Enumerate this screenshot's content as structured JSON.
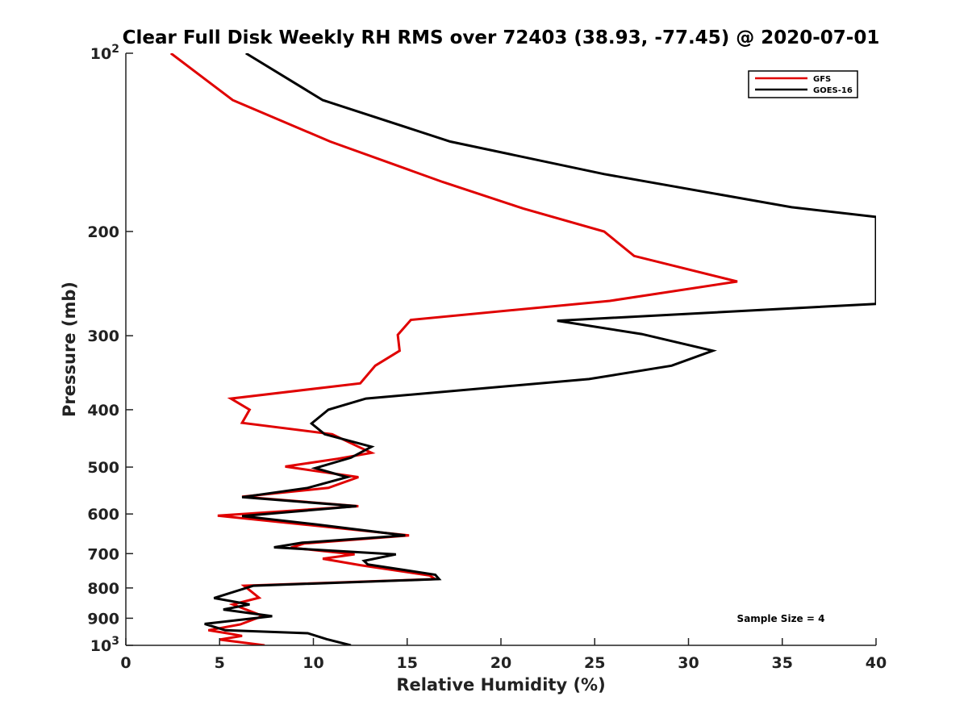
{
  "chart_data": {
    "type": "line",
    "title": "Clear Full Disk Weekly RH RMS over 72403 (38.93, -77.45) @ 2020-07-01",
    "xlabel": "Relative Humidity (%)",
    "ylabel": "Pressure (mb)",
    "xlim": [
      0,
      40
    ],
    "ylim": [
      100,
      1000
    ],
    "yscale": "log",
    "y_reversed": true,
    "grid": false,
    "legend_placement": "top-right",
    "x_ticks": [
      0,
      5,
      10,
      15,
      20,
      25,
      30,
      35,
      40
    ],
    "x_tick_labels": [
      "0",
      "5",
      "10",
      "15",
      "20",
      "25",
      "30",
      "35",
      "40"
    ],
    "y_ticks": [
      100,
      200,
      300,
      400,
      500,
      600,
      700,
      800,
      900,
      1000
    ],
    "y_tick_labels": [
      {
        "base": "10",
        "exp": "2"
      },
      {
        "text": "200"
      },
      {
        "text": "300"
      },
      {
        "text": "400"
      },
      {
        "text": "500"
      },
      {
        "text": "600"
      },
      {
        "text": "700"
      },
      {
        "text": "800"
      },
      {
        "text": "900"
      },
      {
        "base": "10",
        "exp": "3"
      }
    ],
    "annotation": "Sample Size = 4",
    "series": [
      {
        "name": "GFS",
        "color": "#e00000",
        "points": [
          [
            2.4,
            100
          ],
          [
            5.7,
            120
          ],
          [
            10.9,
            141
          ],
          [
            16.9,
            165
          ],
          [
            21.2,
            183
          ],
          [
            25.5,
            200
          ],
          [
            27.1,
            220
          ],
          [
            32.6,
            243
          ],
          [
            25.8,
            262
          ],
          [
            15.2,
            282
          ],
          [
            14.5,
            299
          ],
          [
            14.6,
            318
          ],
          [
            13.3,
            337
          ],
          [
            12.5,
            361
          ],
          [
            5.6,
            383
          ],
          [
            6.6,
            400
          ],
          [
            6.2,
            421
          ],
          [
            11.0,
            440
          ],
          [
            12.4,
            462
          ],
          [
            13.1,
            473
          ],
          [
            11.3,
            484
          ],
          [
            8.5,
            499
          ],
          [
            12.4,
            520
          ],
          [
            10.8,
            542
          ],
          [
            6.2,
            561
          ],
          [
            12.4,
            582
          ],
          [
            4.9,
            604
          ],
          [
            9.5,
            625
          ],
          [
            15.1,
            652
          ],
          [
            9.5,
            673
          ],
          [
            8.8,
            684
          ],
          [
            12.2,
            702
          ],
          [
            10.5,
            714
          ],
          [
            12.5,
            732
          ],
          [
            16.2,
            762
          ],
          [
            16.5,
            773
          ],
          [
            6.3,
            793
          ],
          [
            7.1,
            831
          ],
          [
            5.7,
            853
          ],
          [
            7.3,
            892
          ],
          [
            6.1,
            922
          ],
          [
            4.4,
            943
          ],
          [
            5.4,
            954
          ],
          [
            6.2,
            964
          ],
          [
            5.0,
            978
          ],
          [
            7.4,
            1000
          ]
        ]
      },
      {
        "name": "GOES-16",
        "color": "#000000",
        "points": [
          [
            6.4,
            100
          ],
          [
            10.5,
            120
          ],
          [
            17.3,
            141
          ],
          [
            25.5,
            160
          ],
          [
            35.5,
            182
          ],
          [
            40.0,
            189
          ],
          [
            40.0,
            265
          ],
          [
            23.0,
            283
          ],
          [
            27.5,
            298
          ],
          [
            31.3,
            318
          ],
          [
            29.1,
            337
          ],
          [
            24.7,
            355
          ],
          [
            12.8,
            383
          ],
          [
            10.8,
            400
          ],
          [
            9.9,
            422
          ],
          [
            10.6,
            440
          ],
          [
            13.1,
            462
          ],
          [
            12.0,
            482
          ],
          [
            10.1,
            502
          ],
          [
            11.8,
            520
          ],
          [
            9.7,
            542
          ],
          [
            6.2,
            562
          ],
          [
            12.3,
            582
          ],
          [
            6.2,
            605
          ],
          [
            10.2,
            625
          ],
          [
            14.9,
            652
          ],
          [
            9.4,
            671
          ],
          [
            7.9,
            683
          ],
          [
            14.4,
            702
          ],
          [
            12.7,
            720
          ],
          [
            12.9,
            730
          ],
          [
            16.5,
            760
          ],
          [
            16.7,
            773
          ],
          [
            6.8,
            793
          ],
          [
            4.7,
            832
          ],
          [
            6.6,
            853
          ],
          [
            5.2,
            870
          ],
          [
            7.8,
            893
          ],
          [
            4.2,
            920
          ],
          [
            5.3,
            943
          ],
          [
            9.7,
            954
          ],
          [
            10.7,
            976
          ],
          [
            12.0,
            1000
          ]
        ]
      }
    ]
  }
}
